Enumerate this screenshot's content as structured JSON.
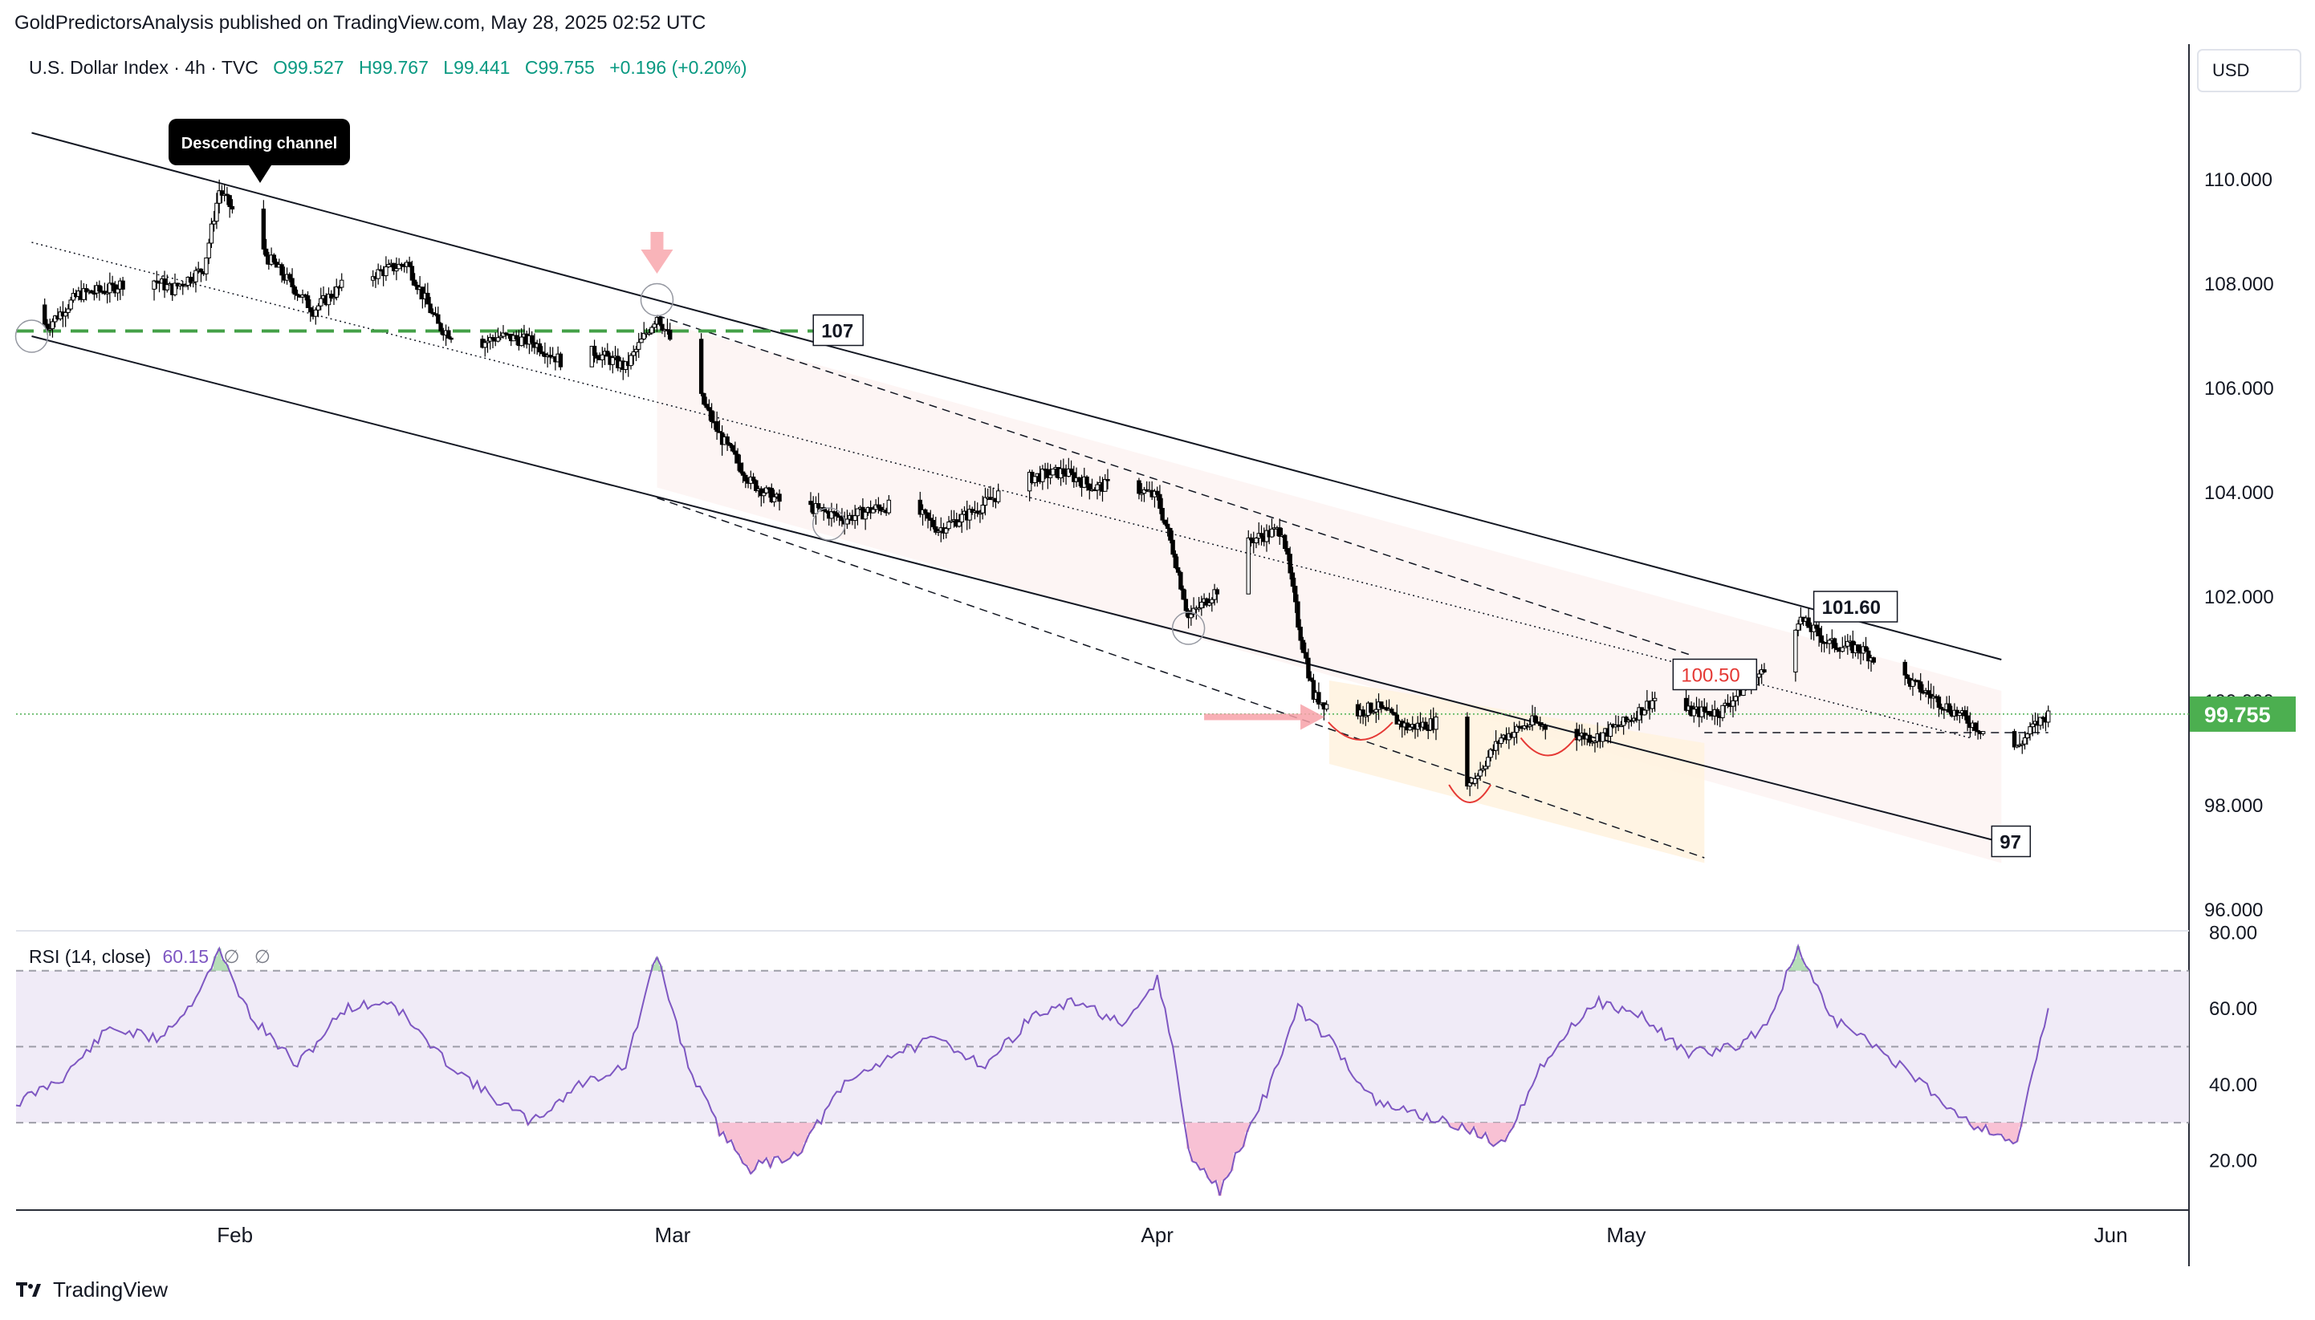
{
  "header": {
    "published": "GoldPredictorsAnalysis published on TradingView.com, May 28, 2025 02:52 UTC"
  },
  "legend": {
    "symbol": "U.S. Dollar Index · 4h · TVC",
    "open": "O99.527",
    "high": "H99.767",
    "low": "L99.441",
    "close": "C99.755",
    "change": "+0.196 (+0.20%)"
  },
  "currency": "USD",
  "last_price": "99.755",
  "rsi_legend": {
    "label": "RSI (14, close)",
    "value": "60.15",
    "extra1": "∅",
    "extra2": "∅"
  },
  "footer": {
    "brand": "TradingView"
  },
  "colors": {
    "up": "#26a69a",
    "down": "#ef5350",
    "candle": "#000000",
    "rsi": "#7e57c2",
    "level": "#43a047",
    "price_badge": "#4caf50"
  },
  "annotations": {
    "callout": "Descending channel",
    "label_107": "107",
    "label_101_60": "101.60",
    "label_100_50": "100.50",
    "label_97": "97"
  },
  "chart_data": [
    {
      "type": "candlestick",
      "title": "",
      "series_name": "U.S. Dollar Index",
      "x_ticks": [
        "Feb",
        "Mar",
        "Apr",
        "May",
        "Jun"
      ],
      "x_tick_dates": [
        "2025-02-01",
        "2025-03-01",
        "2025-04-01",
        "2025-05-01",
        "2025-06-01"
      ],
      "xlim": [
        "2025-01-18",
        "2025-06-06"
      ],
      "y_ticks": [
        "110.000",
        "108.000",
        "106.000",
        "104.000",
        "102.000",
        "100.000",
        "98.000",
        "96.000"
      ],
      "ylim": [
        95.6,
        112.6
      ],
      "close_path": [
        [
          "2025-01-18",
          107.6
        ],
        [
          "2025-01-20",
          107.2
        ],
        [
          "2025-01-22",
          107.8
        ],
        [
          "2025-01-24",
          107.9
        ],
        [
          "2025-01-26",
          108.2
        ],
        [
          "2025-01-28",
          107.9
        ],
        [
          "2025-01-30",
          108.3
        ],
        [
          "2025-01-31",
          109.8
        ],
        [
          "2025-02-02",
          108.9
        ],
        [
          "2025-02-04",
          108.2
        ],
        [
          "2025-02-06",
          107.5
        ],
        [
          "2025-02-08",
          108.0
        ],
        [
          "2025-02-10",
          108.2
        ],
        [
          "2025-02-12",
          108.4
        ],
        [
          "2025-02-14",
          107.2
        ],
        [
          "2025-02-16",
          106.8
        ],
        [
          "2025-02-18",
          107.0
        ],
        [
          "2025-02-20",
          106.9
        ],
        [
          "2025-02-22",
          106.5
        ],
        [
          "2025-02-24",
          106.7
        ],
        [
          "2025-02-26",
          106.4
        ],
        [
          "2025-02-28",
          107.4
        ],
        [
          "2025-03-02",
          106.3
        ],
        [
          "2025-03-04",
          105.1
        ],
        [
          "2025-03-06",
          104.2
        ],
        [
          "2025-03-08",
          103.8
        ],
        [
          "2025-03-10",
          103.7
        ],
        [
          "2025-03-12",
          103.5
        ],
        [
          "2025-03-14",
          103.7
        ],
        [
          "2025-03-16",
          103.8
        ],
        [
          "2025-03-18",
          103.3
        ],
        [
          "2025-03-20",
          103.6
        ],
        [
          "2025-03-22",
          104.0
        ],
        [
          "2025-03-24",
          104.3
        ],
        [
          "2025-03-26",
          104.4
        ],
        [
          "2025-03-28",
          104.1
        ],
        [
          "2025-03-30",
          104.2
        ],
        [
          "2025-04-01",
          103.9
        ],
        [
          "2025-04-02",
          102.9
        ],
        [
          "2025-04-03",
          101.6
        ],
        [
          "2025-04-05",
          102.2
        ],
        [
          "2025-04-07",
          103.1
        ],
        [
          "2025-04-09",
          103.3
        ],
        [
          "2025-04-10",
          101.5
        ],
        [
          "2025-04-11",
          100.1
        ],
        [
          "2025-04-13",
          99.7
        ],
        [
          "2025-04-15",
          99.9
        ],
        [
          "2025-04-17",
          99.5
        ],
        [
          "2025-04-19",
          99.6
        ],
        [
          "2025-04-21",
          98.4
        ],
        [
          "2025-04-23",
          99.3
        ],
        [
          "2025-04-25",
          99.6
        ],
        [
          "2025-04-27",
          99.4
        ],
        [
          "2025-04-29",
          99.3
        ],
        [
          "2025-05-01",
          99.6
        ],
        [
          "2025-05-03",
          100.1
        ],
        [
          "2025-05-05",
          99.8
        ],
        [
          "2025-05-07",
          99.8
        ],
        [
          "2025-05-09",
          100.4
        ],
        [
          "2025-05-11",
          100.8
        ],
        [
          "2025-05-12",
          101.6
        ],
        [
          "2025-05-14",
          101.1
        ],
        [
          "2025-05-16",
          101.0
        ],
        [
          "2025-05-18",
          100.6
        ],
        [
          "2025-05-20",
          100.2
        ],
        [
          "2025-05-22",
          99.8
        ],
        [
          "2025-05-24",
          99.4
        ],
        [
          "2025-05-26",
          99.1
        ],
        [
          "2025-05-27",
          99.5
        ],
        [
          "2025-05-28",
          99.755
        ]
      ]
    },
    {
      "type": "line",
      "title": "",
      "series_name": "RSI (14, close)",
      "y_ticks": [
        "80.00",
        "60.00",
        "40.00",
        "20.00"
      ],
      "ylim": [
        7,
        80.5
      ],
      "bands": [
        70,
        50,
        30
      ],
      "x": [
        "2025-01-18",
        "2025-01-21",
        "2025-01-24",
        "2025-01-27",
        "2025-01-29",
        "2025-01-31",
        "2025-02-02",
        "2025-02-05",
        "2025-02-08",
        "2025-02-11",
        "2025-02-14",
        "2025-02-17",
        "2025-02-20",
        "2025-02-23",
        "2025-02-26",
        "2025-02-28",
        "2025-03-02",
        "2025-03-04",
        "2025-03-06",
        "2025-03-09",
        "2025-03-12",
        "2025-03-15",
        "2025-03-18",
        "2025-03-21",
        "2025-03-24",
        "2025-03-27",
        "2025-03-30",
        "2025-04-01",
        "2025-04-02",
        "2025-04-03",
        "2025-04-05",
        "2025-04-08",
        "2025-04-10",
        "2025-04-12",
        "2025-04-15",
        "2025-04-18",
        "2025-04-21",
        "2025-04-23",
        "2025-04-26",
        "2025-04-29",
        "2025-05-02",
        "2025-05-05",
        "2025-05-08",
        "2025-05-10",
        "2025-05-12",
        "2025-05-14",
        "2025-05-17",
        "2025-05-20",
        "2025-05-23",
        "2025-05-26",
        "2025-05-28"
      ],
      "values": [
        35,
        42,
        55,
        52,
        60,
        75,
        58,
        45,
        60,
        62,
        48,
        38,
        30,
        40,
        45,
        74,
        45,
        28,
        18,
        22,
        40,
        48,
        52,
        45,
        58,
        62,
        55,
        68,
        50,
        22,
        12,
        38,
        60,
        52,
        35,
        32,
        28,
        24,
        48,
        62,
        58,
        48,
        50,
        56,
        76,
        58,
        50,
        40,
        30,
        25,
        60.15
      ]
    }
  ]
}
